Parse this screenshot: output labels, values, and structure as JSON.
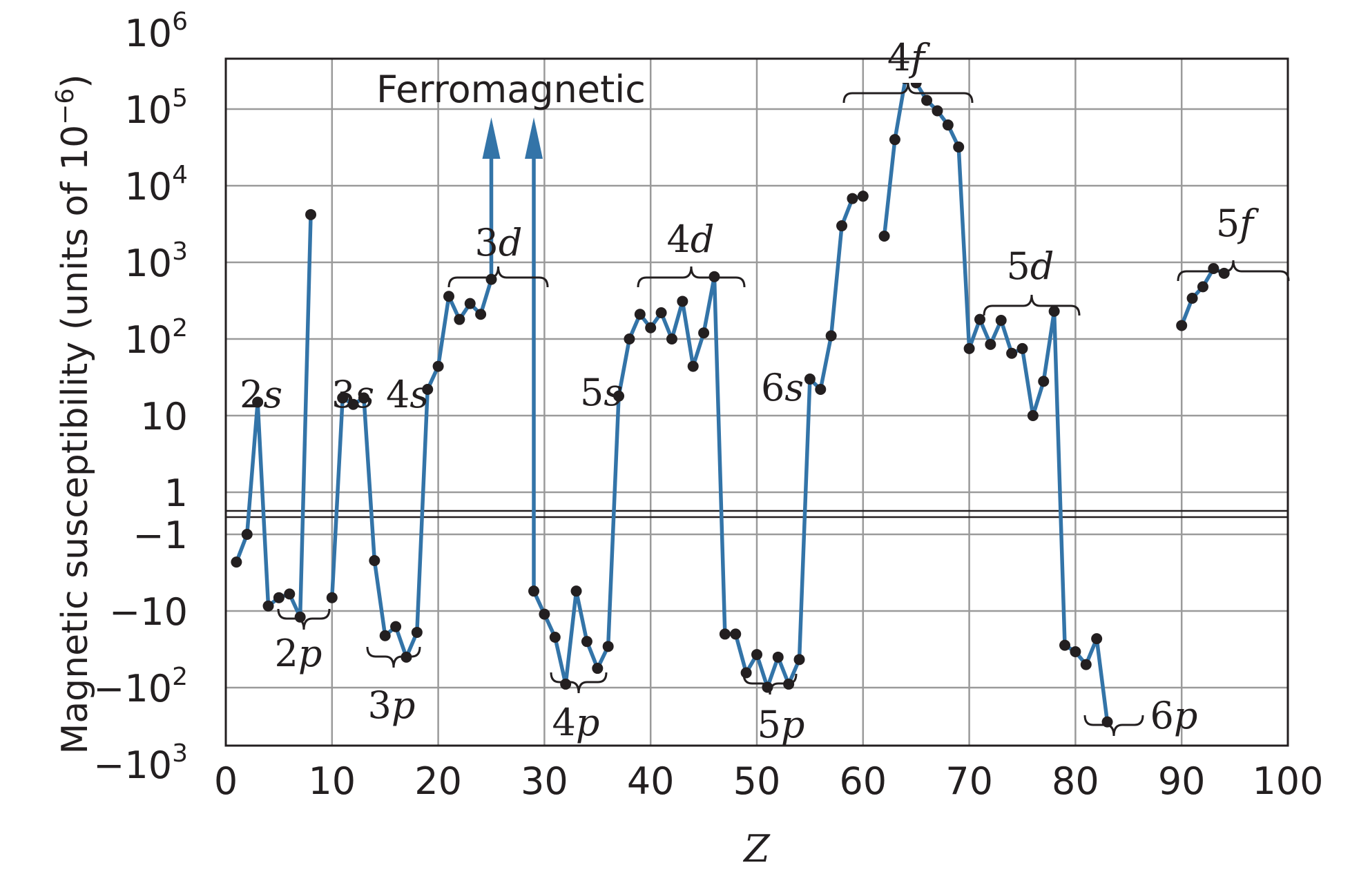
{
  "chart_data": {
    "type": "line",
    "xlabel": "Z",
    "ylabel": "Magnetic susceptibility (units of 10⁻⁶)",
    "ylabel_main": "Magnetic susceptibility (units of 10",
    "ylabel_exp": "−6",
    "ylabel_close": ")",
    "x_ticks": [
      "0",
      "10",
      "20",
      "30",
      "40",
      "50",
      "60",
      "70",
      "80",
      "90",
      "100"
    ],
    "xlim": [
      0,
      100
    ],
    "y_scale": "symmetric log (positive and negative decades)",
    "y_ticks": [
      {
        "value": 1000000,
        "base": "10",
        "exp": "6"
      },
      {
        "value": 100000,
        "base": "10",
        "exp": "5"
      },
      {
        "value": 10000,
        "base": "10",
        "exp": "4"
      },
      {
        "value": 1000,
        "base": "10",
        "exp": "3"
      },
      {
        "value": 100,
        "base": "10",
        "exp": "2"
      },
      {
        "value": 10,
        "base": "10",
        "exp": ""
      },
      {
        "value": 1,
        "base": "1",
        "exp": ""
      },
      {
        "value": -1,
        "base": "−1",
        "exp": ""
      },
      {
        "value": -10,
        "base": "−10",
        "exp": ""
      },
      {
        "value": -100,
        "base": "−10",
        "exp": "2"
      },
      {
        "value": -1000,
        "base": "−10",
        "exp": "3"
      }
    ],
    "grid": true,
    "line_color": "#3374a8",
    "point_color": "#231f20",
    "series": [
      {
        "values": [
          [
            1,
            -2.3
          ],
          [
            2,
            -0.9
          ],
          [
            3,
            15
          ],
          [
            4,
            -8.6
          ],
          [
            5,
            -6.7
          ],
          [
            6,
            -6
          ],
          [
            7,
            -12
          ],
          [
            8,
            4200
          ]
        ]
      },
      {
        "values": [
          [
            10,
            -6.7
          ],
          [
            11,
            17
          ],
          [
            12,
            14
          ],
          [
            13,
            17
          ],
          [
            14,
            -2.2
          ],
          [
            15,
            -21
          ],
          [
            16,
            -16
          ],
          [
            17,
            -40
          ],
          [
            18,
            -19
          ],
          [
            19,
            22
          ],
          [
            20,
            44
          ],
          [
            21,
            360
          ],
          [
            22,
            180
          ],
          [
            23,
            290
          ],
          [
            24,
            210
          ],
          [
            25,
            600
          ],
          [
            25,
            1000000
          ]
        ]
      },
      {
        "values": [
          [
            29,
            1000000
          ],
          [
            29,
            -5.5
          ],
          [
            30,
            -11
          ],
          [
            31,
            -22
          ],
          [
            32,
            -90
          ],
          [
            33,
            -5.5
          ],
          [
            34,
            -25
          ],
          [
            35,
            -56
          ],
          [
            36,
            -29
          ],
          [
            37,
            18
          ],
          [
            38,
            100
          ],
          [
            39,
            210
          ],
          [
            40,
            140
          ],
          [
            41,
            220
          ],
          [
            42,
            100
          ],
          [
            43,
            310
          ],
          [
            44,
            44
          ],
          [
            45,
            120
          ],
          [
            46,
            650
          ],
          [
            47,
            -20
          ],
          [
            48,
            -20
          ],
          [
            49,
            -64
          ],
          [
            50,
            -37
          ],
          [
            51,
            -99
          ],
          [
            52,
            -40
          ],
          [
            53,
            -90
          ],
          [
            54,
            -43
          ],
          [
            55,
            30
          ],
          [
            56,
            22
          ],
          [
            57,
            110
          ],
          [
            58,
            3000
          ],
          [
            59,
            6800
          ],
          [
            60,
            7300
          ]
        ]
      },
      {
        "values": [
          [
            62,
            2200
          ],
          [
            63,
            40000
          ],
          [
            64,
            250000
          ],
          [
            65,
            220000
          ],
          [
            66,
            130000
          ],
          [
            67,
            95000
          ],
          [
            68,
            62000
          ],
          [
            69,
            32000
          ],
          [
            70,
            75
          ],
          [
            71,
            180
          ],
          [
            72,
            85
          ],
          [
            73,
            175
          ],
          [
            74,
            65
          ],
          [
            75,
            75
          ],
          [
            76,
            10
          ],
          [
            77,
            28
          ],
          [
            78,
            230
          ],
          [
            79,
            -28
          ],
          [
            80,
            -34
          ],
          [
            81,
            -50
          ],
          [
            82,
            -23
          ],
          [
            83,
            -280
          ]
        ]
      },
      {
        "values": [
          [
            90,
            150
          ],
          [
            91,
            340
          ],
          [
            92,
            480
          ],
          [
            93,
            830
          ],
          [
            94,
            720
          ]
        ]
      }
    ],
    "arrows_at_z": [
      25,
      29
    ],
    "annotations": {
      "ferromagnetic": "Ferromagnetic",
      "shells": [
        {
          "n": "2",
          "l": "s"
        },
        {
          "n": "2",
          "l": "p"
        },
        {
          "n": "3",
          "l": "s"
        },
        {
          "n": "3",
          "l": "p"
        },
        {
          "n": "4",
          "l": "s"
        },
        {
          "n": "3",
          "l": "d"
        },
        {
          "n": "4",
          "l": "p"
        },
        {
          "n": "5",
          "l": "s"
        },
        {
          "n": "4",
          "l": "d"
        },
        {
          "n": "5",
          "l": "p"
        },
        {
          "n": "6",
          "l": "s"
        },
        {
          "n": "4",
          "l": "f"
        },
        {
          "n": "5",
          "l": "d"
        },
        {
          "n": "6",
          "l": "p"
        },
        {
          "n": "5",
          "l": "f"
        }
      ]
    }
  }
}
